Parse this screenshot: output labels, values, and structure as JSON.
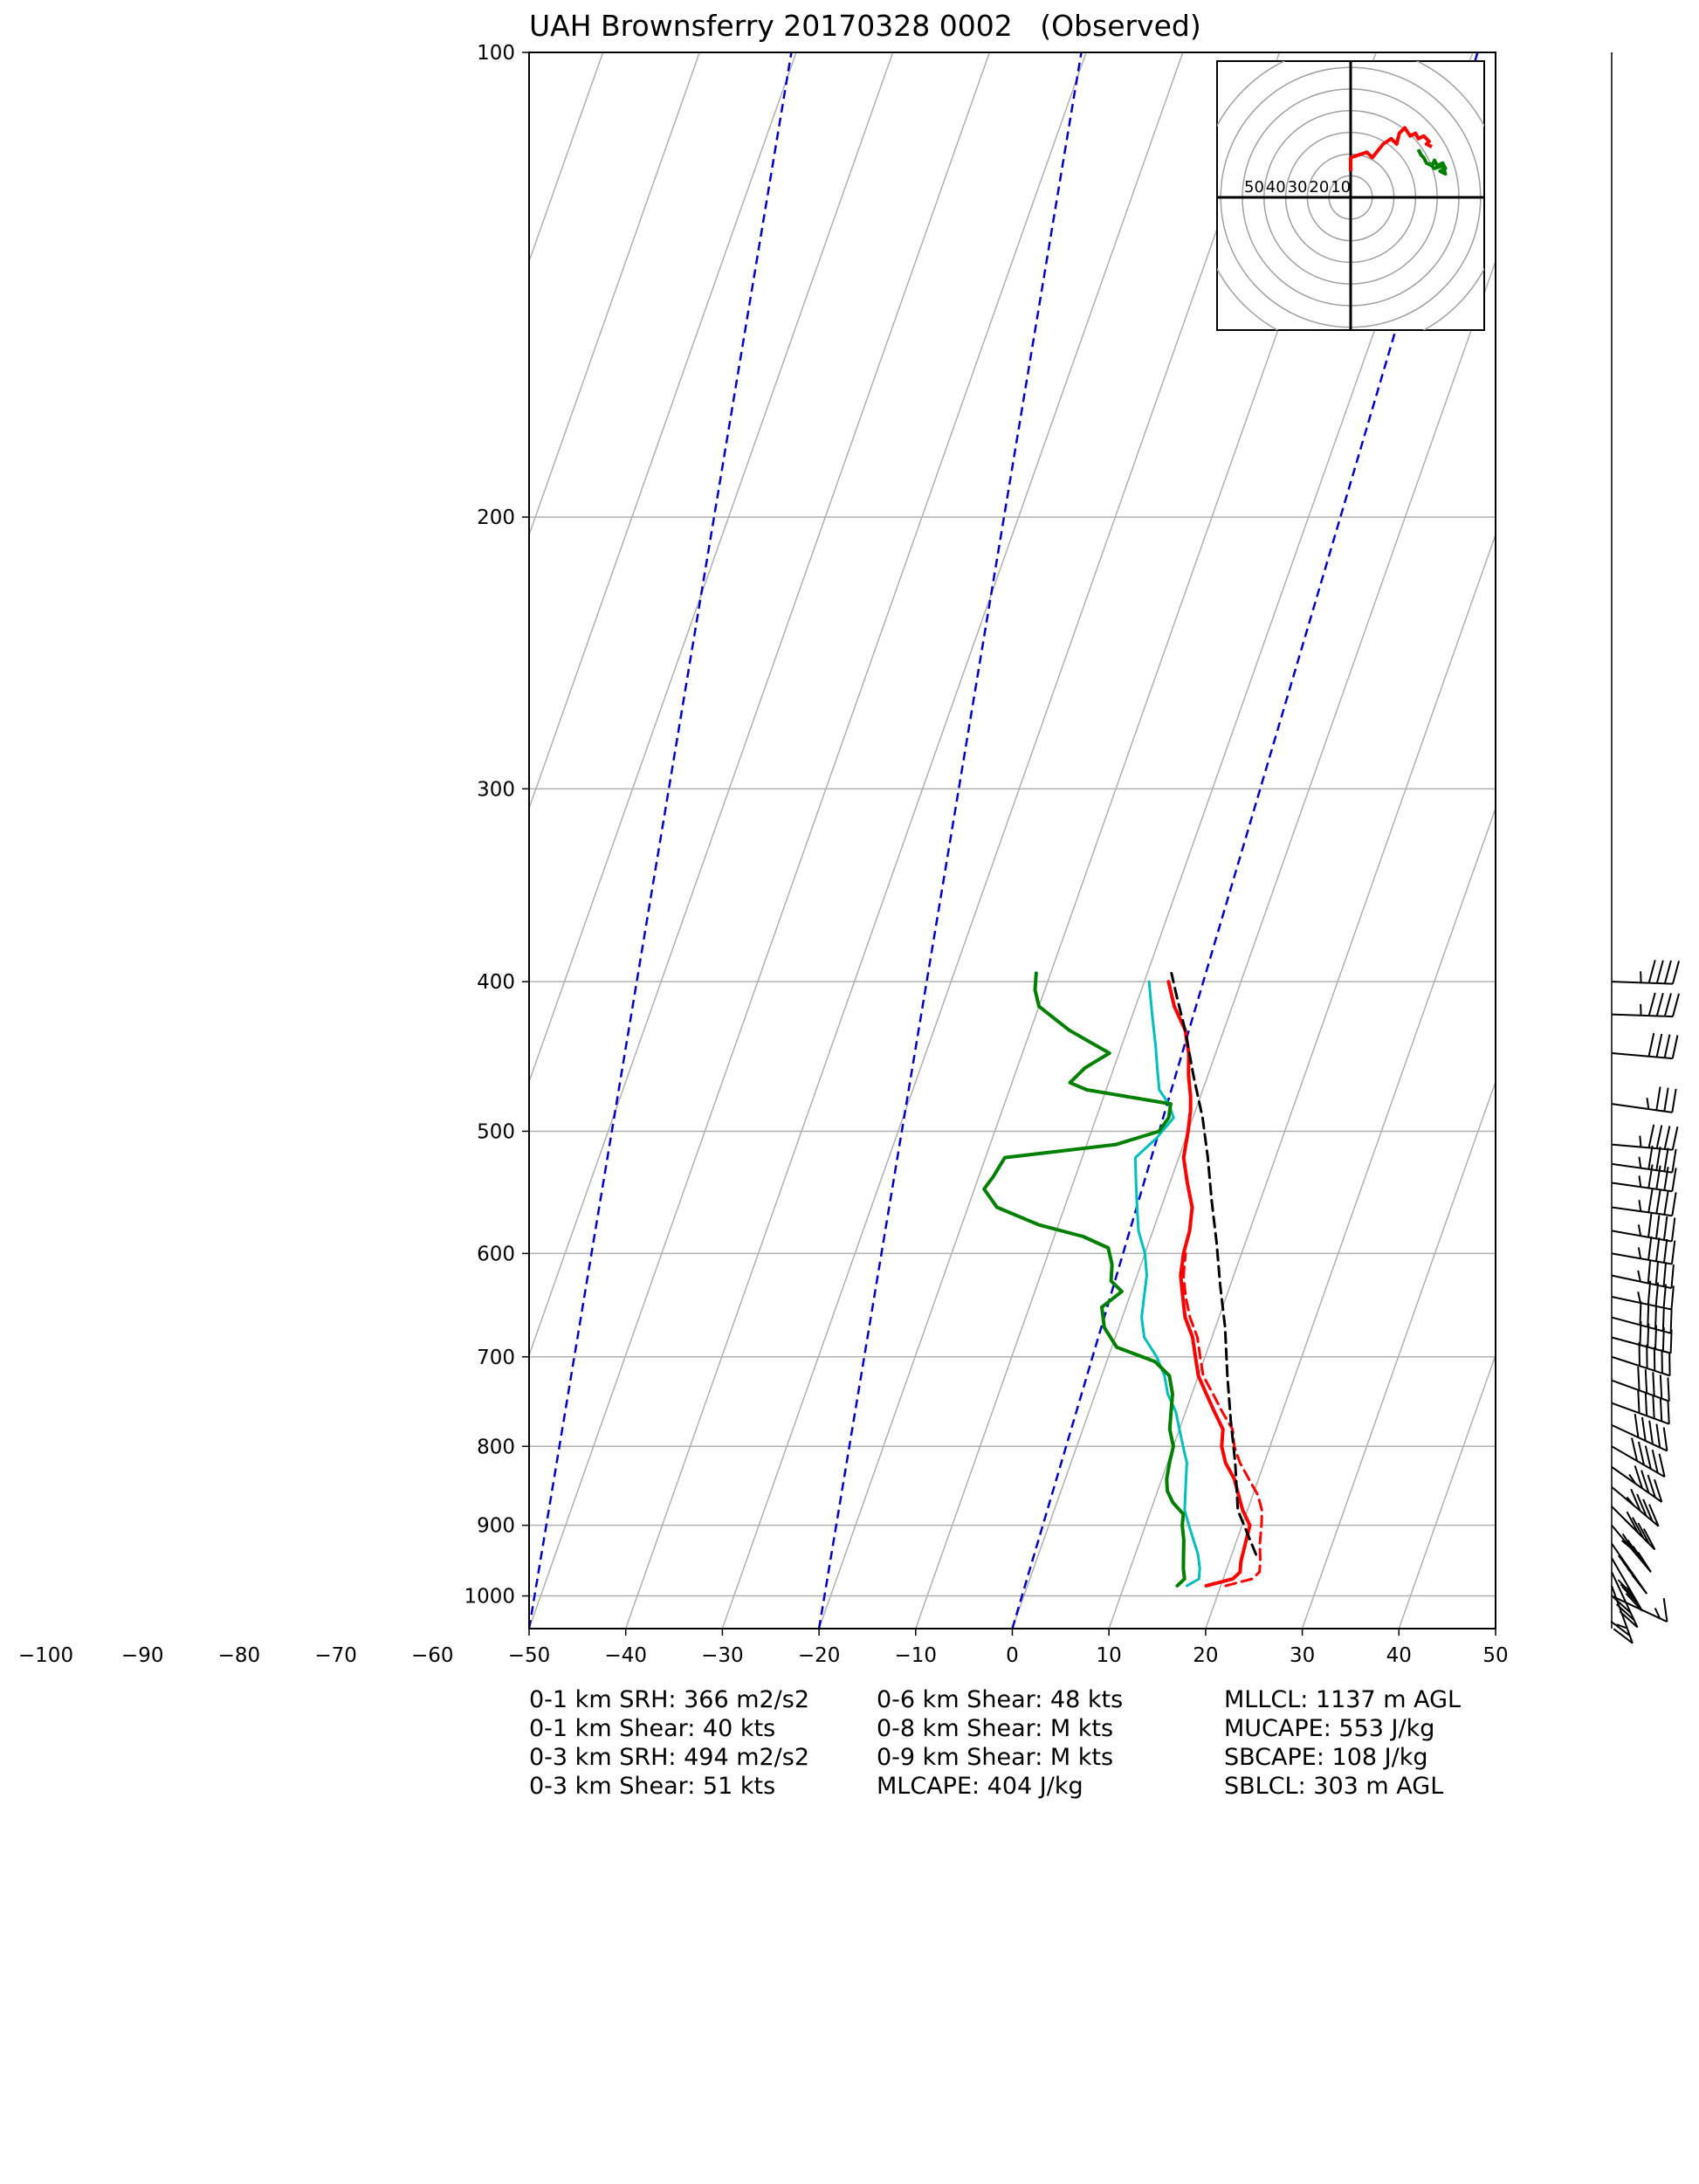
{
  "title": "UAH Brownsferry 20170328 0002   (Observed)",
  "colors": {
    "temperature": "#ff0000",
    "virtual_temperature": "#ff0000",
    "dewpoint": "#008000",
    "wetbulb": "#00bfbf",
    "parcel": "#000000",
    "mixing_ratio": "#0000cc",
    "grid": "#b0b0b0"
  },
  "chart_data": [
    {
      "type": "line",
      "subtype": "skew-t log-p",
      "title": "UAH Brownsferry 20170328 0002   (Observed)",
      "xlabel": "",
      "ylabel": "",
      "x_ticks": [
        -100,
        -90,
        -80,
        -70,
        -60,
        -50,
        -40,
        -30,
        -20,
        -10,
        0,
        10,
        20,
        30,
        40,
        50
      ],
      "y_ticks": [
        100,
        200,
        300,
        400,
        500,
        600,
        700,
        800,
        900,
        1000
      ],
      "xlim": [
        -50,
        50
      ],
      "ylim": [
        1050,
        100
      ],
      "y_scale": "log",
      "grid": true,
      "series": [
        {
          "key": "temperature",
          "style": "solid",
          "points": [
            [
              18.5,
              985
            ],
            [
              21,
              975
            ],
            [
              21.5,
              965
            ],
            [
              21.2,
              950
            ],
            [
              21,
              925
            ],
            [
              20.8,
              900
            ],
            [
              19.5,
              880
            ],
            [
              18.5,
              860
            ],
            [
              17.5,
              840
            ],
            [
              16,
              820
            ],
            [
              15,
              800
            ],
            [
              14.5,
              780
            ],
            [
              13,
              760
            ],
            [
              11.5,
              740
            ],
            [
              10,
              720
            ],
            [
              9,
              700
            ],
            [
              8,
              680
            ],
            [
              6.5,
              660
            ],
            [
              5.5,
              640
            ],
            [
              4.5,
              620
            ],
            [
              4,
              600
            ],
            [
              3.8,
              580
            ],
            [
              3.2,
              560
            ],
            [
              1.8,
              540
            ],
            [
              0.5,
              520
            ],
            [
              0,
              500
            ],
            [
              -0.5,
              485
            ],
            [
              -1,
              475
            ],
            [
              -2,
              460
            ],
            [
              -2.8,
              445
            ],
            [
              -4,
              430
            ],
            [
              -6,
              415
            ],
            [
              -7.5,
              400
            ]
          ]
        },
        {
          "key": "virtual_temperature",
          "style": "dashed",
          "points": [
            [
              20.5,
              985
            ],
            [
              23,
              975
            ],
            [
              23.5,
              965
            ],
            [
              23.2,
              950
            ],
            [
              22.5,
              925
            ],
            [
              22,
              900
            ],
            [
              21.5,
              880
            ],
            [
              20.5,
              860
            ],
            [
              19,
              840
            ],
            [
              17.5,
              820
            ],
            [
              16.3,
              800
            ],
            [
              15.5,
              780
            ],
            [
              13.8,
              760
            ],
            [
              12.2,
              740
            ],
            [
              10.5,
              720
            ],
            [
              9.5,
              700
            ],
            [
              8.5,
              680
            ],
            [
              7,
              660
            ],
            [
              5.8,
              640
            ],
            [
              4.8,
              620
            ],
            [
              4.2,
              600
            ]
          ]
        },
        {
          "key": "wetbulb",
          "style": "solid",
          "points": [
            [
              16.5,
              985
            ],
            [
              17.5,
              975
            ],
            [
              17.2,
              960
            ],
            [
              16.5,
              940
            ],
            [
              15.5,
              920
            ],
            [
              14.5,
              900
            ],
            [
              13.5,
              880
            ],
            [
              13,
              860
            ],
            [
              12.5,
              840
            ],
            [
              12,
              820
            ],
            [
              11,
              800
            ],
            [
              10,
              780
            ],
            [
              9,
              760
            ],
            [
              7.5,
              740
            ],
            [
              6.5,
              720
            ],
            [
              5,
              700
            ],
            [
              3,
              680
            ],
            [
              2,
              660
            ],
            [
              1.5,
              640
            ],
            [
              1,
              620
            ],
            [
              0,
              600
            ],
            [
              -1.5,
              580
            ],
            [
              -2.5,
              560
            ],
            [
              -3.5,
              540
            ],
            [
              -4.5,
              520
            ],
            [
              -3,
              505
            ],
            [
              -2,
              490
            ],
            [
              -3,
              480
            ],
            [
              -4.5,
              470
            ],
            [
              -5.5,
              455
            ],
            [
              -6.5,
              440
            ],
            [
              -8,
              420
            ],
            [
              -9.5,
              400
            ]
          ]
        },
        {
          "key": "dewpoint",
          "style": "solid",
          "points": [
            [
              15.5,
              985
            ],
            [
              16,
              975
            ],
            [
              15.5,
              960
            ],
            [
              15,
              940
            ],
            [
              14.5,
              920
            ],
            [
              13.8,
              900
            ],
            [
              13.5,
              885
            ],
            [
              12,
              870
            ],
            [
              11,
              855
            ],
            [
              10.5,
              840
            ],
            [
              10.2,
              820
            ],
            [
              10,
              800
            ],
            [
              9,
              780
            ],
            [
              8.5,
              760
            ],
            [
              8,
              740
            ],
            [
              7,
              720
            ],
            [
              5,
              705
            ],
            [
              0.5,
              690
            ],
            [
              -1.5,
              670
            ],
            [
              -2.5,
              650
            ],
            [
              -1,
              635
            ],
            [
              -2.5,
              625
            ],
            [
              -3,
              610
            ],
            [
              -4,
              595
            ],
            [
              -7,
              585
            ],
            [
              -12,
              575
            ],
            [
              -17,
              560
            ],
            [
              -19,
              545
            ],
            [
              -18.5,
              535
            ],
            [
              -18,
              520
            ],
            [
              -7,
              510
            ],
            [
              -3,
              500
            ],
            [
              -2.5,
              490
            ],
            [
              -2.8,
              480
            ],
            [
              -12,
              470
            ],
            [
              -14,
              465
            ],
            [
              -13,
              455
            ],
            [
              -11,
              445
            ],
            [
              -16,
              430
            ],
            [
              -20,
              415
            ],
            [
              -21,
              405
            ],
            [
              -21.5,
              395
            ]
          ]
        },
        {
          "key": "parcel",
          "style": "dashed",
          "points": [
            [
              22.5,
              940
            ],
            [
              19,
              880
            ],
            [
              17,
              820
            ],
            [
              15,
              770
            ],
            [
              13,
              720
            ],
            [
              11,
              670
            ],
            [
              9,
              630
            ],
            [
              7,
              590
            ],
            [
              5,
              555
            ],
            [
              3,
              520
            ],
            [
              1,
              490
            ],
            [
              -1.5,
              460
            ],
            [
              -4,
              430
            ],
            [
              -6,
              410
            ],
            [
              -7.5,
              395
            ]
          ]
        }
      ]
    },
    {
      "type": "line",
      "subtype": "hodograph",
      "ring_labels": [
        "50",
        "40",
        "30",
        "20",
        "10"
      ],
      "series": [
        {
          "key": "temperature",
          "points": [
            [
              0,
              0
            ],
            [
              0,
              5
            ],
            [
              6,
              7
            ],
            [
              8,
              5
            ],
            [
              12,
              10
            ],
            [
              15,
              12
            ],
            [
              17,
              10
            ],
            [
              18,
              14
            ],
            [
              20,
              16
            ],
            [
              22,
              13
            ],
            [
              24,
              14
            ],
            [
              25,
              12
            ],
            [
              27,
              13
            ],
            [
              29,
              11
            ],
            [
              28,
              10
            ],
            [
              30,
              9
            ]
          ]
        },
        {
          "key": "dewpoint",
          "points": [
            [
              25,
              8
            ],
            [
              26,
              6
            ],
            [
              27,
              5
            ],
            [
              28,
              3
            ],
            [
              30,
              2
            ],
            [
              31,
              4
            ],
            [
              32,
              2
            ],
            [
              34,
              3
            ],
            [
              35,
              1
            ],
            [
              33,
              0
            ],
            [
              35,
              -1
            ],
            [
              34,
              2
            ],
            [
              31,
              1
            ],
            [
              29,
              3
            ]
          ]
        }
      ]
    }
  ],
  "wind_barbs": [
    {
      "p": 1000,
      "dir": 245,
      "spd": 15
    },
    {
      "p": 985,
      "dir": 200,
      "spd": 25
    },
    {
      "p": 965,
      "dir": 205,
      "spd": 30
    },
    {
      "p": 945,
      "dir": 210,
      "spd": 35
    },
    {
      "p": 925,
      "dir": 215,
      "spd": 40
    },
    {
      "p": 900,
      "dir": 220,
      "spd": 45
    },
    {
      "p": 875,
      "dir": 225,
      "spd": 45
    },
    {
      "p": 850,
      "dir": 230,
      "spd": 45
    },
    {
      "p": 825,
      "dir": 235,
      "spd": 45
    },
    {
      "p": 800,
      "dir": 240,
      "spd": 50
    },
    {
      "p": 775,
      "dir": 245,
      "spd": 50
    },
    {
      "p": 750,
      "dir": 250,
      "spd": 50
    },
    {
      "p": 725,
      "dir": 250,
      "spd": 50
    },
    {
      "p": 700,
      "dir": 252,
      "spd": 50
    },
    {
      "p": 680,
      "dir": 255,
      "spd": 50
    },
    {
      "p": 660,
      "dir": 255,
      "spd": 50
    },
    {
      "p": 640,
      "dir": 258,
      "spd": 45
    },
    {
      "p": 620,
      "dir": 258,
      "spd": 45
    },
    {
      "p": 600,
      "dir": 260,
      "spd": 45
    },
    {
      "p": 580,
      "dir": 260,
      "spd": 45
    },
    {
      "p": 560,
      "dir": 262,
      "spd": 45
    },
    {
      "p": 540,
      "dir": 262,
      "spd": 45
    },
    {
      "p": 525,
      "dir": 262,
      "spd": 45
    },
    {
      "p": 510,
      "dir": 265,
      "spd": 45
    },
    {
      "p": 480,
      "dir": 262,
      "spd": 35
    },
    {
      "p": 445,
      "dir": 265,
      "spd": 40
    },
    {
      "p": 420,
      "dir": 268,
      "spd": 45
    },
    {
      "p": 400,
      "dir": 268,
      "spd": 45
    }
  ],
  "stats": {
    "col1": [
      "0-1 km SRH: 366 m2/s2",
      "0-1 km Shear: 40 kts",
      "0-3 km SRH: 494 m2/s2",
      "0-3 km Shear: 51 kts"
    ],
    "col2": [
      "0-6 km Shear: 48 kts",
      "0-8 km Shear: M kts",
      "0-9 km Shear: M kts",
      "MLCAPE: 404 J/kg"
    ],
    "col3": [
      "MLLCL: 1137 m AGL",
      "MUCAPE: 553 J/kg",
      "SBCAPE: 108 J/kg",
      "SBLCL: 303 m AGL"
    ]
  }
}
